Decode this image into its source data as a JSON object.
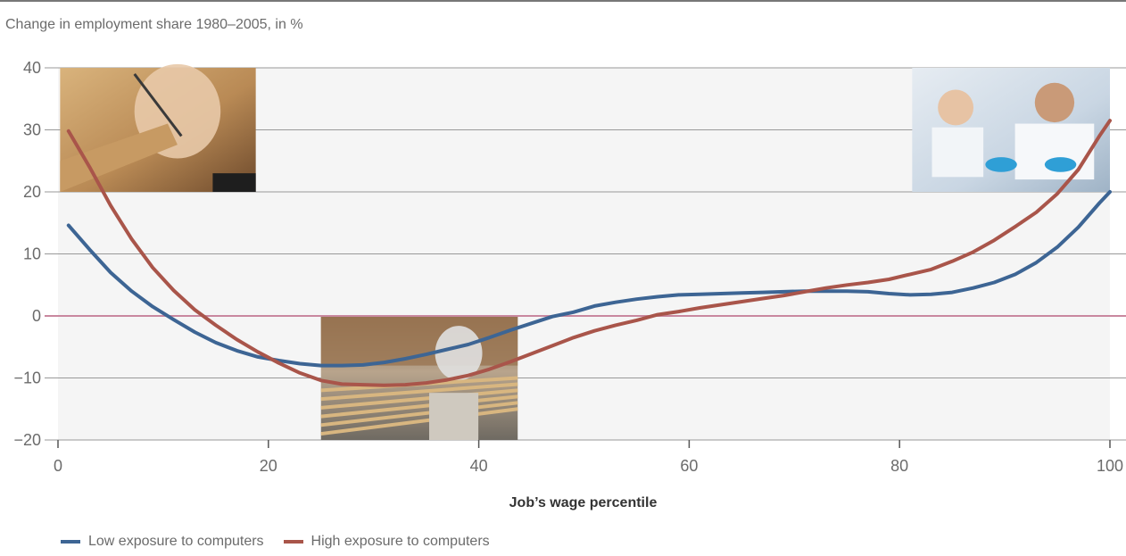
{
  "header": {
    "subtitle": "Change in employment share 1980–2005, in %"
  },
  "colors": {
    "low_exposure": "#3d6594",
    "high_exposure": "#a9554a",
    "zero_line": "#c9889f",
    "plot_background": "#f5f5f5",
    "grid": "#999999"
  },
  "chart_data": {
    "type": "line",
    "title": "",
    "subtitle": "Change in employment share 1980–2005, in %",
    "xlabel": "Job’s wage percentile",
    "ylabel": "",
    "xlim": [
      0,
      100
    ],
    "ylim": [
      -20,
      40
    ],
    "xticks": [
      0,
      20,
      40,
      60,
      80,
      100
    ],
    "yticks": [
      -20,
      -10,
      0,
      10,
      20,
      30,
      40
    ],
    "ytick_labels": [
      "−20",
      "−10",
      "0",
      "10",
      "20",
      "30",
      "40"
    ],
    "grid": "horizontal",
    "legend_position": "bottom-left",
    "reference_line": 0,
    "series": [
      {
        "name": "Low exposure to computers",
        "color": "#3d6594",
        "x": [
          1,
          3,
          5,
          7,
          9,
          11,
          13,
          15,
          17,
          19,
          21,
          23,
          25,
          27,
          29,
          31,
          33,
          35,
          37,
          39,
          41,
          43,
          45,
          47,
          49,
          51,
          53,
          55,
          57,
          59,
          61,
          63,
          65,
          67,
          69,
          71,
          73,
          75,
          77,
          79,
          81,
          83,
          85,
          87,
          89,
          91,
          93,
          95,
          97,
          99,
          100
        ],
        "y": [
          14.6,
          10.7,
          7.0,
          4.0,
          1.5,
          -0.6,
          -2.6,
          -4.3,
          -5.6,
          -6.6,
          -7.2,
          -7.7,
          -8.0,
          -8.0,
          -7.9,
          -7.5,
          -6.9,
          -6.2,
          -5.4,
          -4.6,
          -3.5,
          -2.3,
          -1.2,
          -0.1,
          0.6,
          1.6,
          2.2,
          2.7,
          3.1,
          3.4,
          3.5,
          3.6,
          3.7,
          3.8,
          3.9,
          4.0,
          4.0,
          4.0,
          3.9,
          3.6,
          3.4,
          3.5,
          3.8,
          4.5,
          5.4,
          6.7,
          8.6,
          11.1,
          14.3,
          18.2,
          20.0
        ]
      },
      {
        "name": "High exposure to computers",
        "color": "#a9554a",
        "x": [
          1,
          3,
          5,
          7,
          9,
          11,
          13,
          15,
          17,
          19,
          21,
          23,
          25,
          27,
          29,
          31,
          33,
          35,
          37,
          39,
          41,
          43,
          45,
          47,
          49,
          51,
          53,
          55,
          57,
          59,
          61,
          63,
          65,
          67,
          69,
          71,
          73,
          75,
          77,
          79,
          81,
          83,
          85,
          87,
          89,
          91,
          93,
          95,
          97,
          99,
          100
        ],
        "y": [
          29.8,
          24.0,
          17.8,
          12.4,
          7.8,
          4.1,
          1.0,
          -1.5,
          -3.8,
          -5.8,
          -7.6,
          -9.2,
          -10.4,
          -11.0,
          -11.1,
          -11.2,
          -11.1,
          -10.8,
          -10.3,
          -9.6,
          -8.6,
          -7.4,
          -6.1,
          -4.8,
          -3.5,
          -2.4,
          -1.5,
          -0.7,
          0.2,
          0.7,
          1.3,
          1.8,
          2.3,
          2.8,
          3.3,
          3.9,
          4.5,
          5.0,
          5.4,
          5.9,
          6.7,
          7.5,
          8.8,
          10.3,
          12.2,
          14.4,
          16.7,
          19.7,
          23.6,
          29.0,
          31.5
        ]
      }
    ]
  }
}
